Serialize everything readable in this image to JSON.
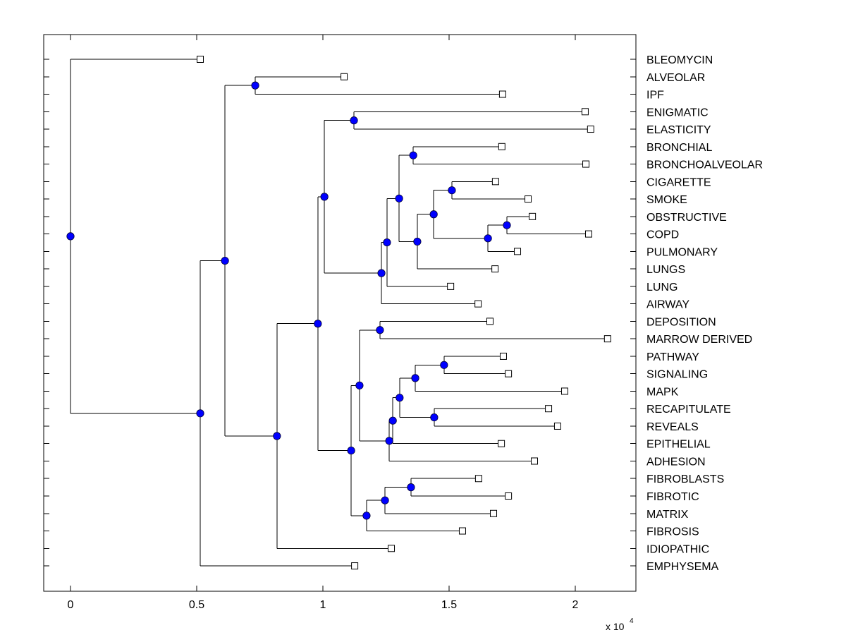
{
  "chart_data": {
    "type": "dendrogram",
    "title": "",
    "xlabel": "",
    "ylabel": "",
    "x_multiplier_label": "x 10",
    "x_multiplier_exponent": "4",
    "xlim": [
      -0.106,
      2.246
    ],
    "x_ticks": [
      0,
      0.5,
      1,
      1.5,
      2
    ],
    "x_tick_labels": [
      "0",
      "0.5",
      "1",
      "1.5",
      "2"
    ],
    "grid": false,
    "colors": {
      "node_fill": "#0000ff",
      "node_edge": "#000033",
      "leaf_fill": "#ffffff",
      "line": "#000000"
    },
    "leaves": [
      {
        "label": "BLEOMYCIN",
        "x": 0.514
      },
      {
        "label": "ALVEOLAR",
        "x": 1.084
      },
      {
        "label": "IPF",
        "x": 1.712
      },
      {
        "label": "ENIGMATIC",
        "x": 2.039
      },
      {
        "label": "ELASTICITY",
        "x": 2.061
      },
      {
        "label": "BRONCHIAL",
        "x": 1.709
      },
      {
        "label": "BRONCHOALVEOLAR",
        "x": 2.042
      },
      {
        "label": "CIGARETTE",
        "x": 1.684
      },
      {
        "label": "SMOKE",
        "x": 1.813
      },
      {
        "label": "OBSTRUCTIVE",
        "x": 1.83
      },
      {
        "label": "COPD",
        "x": 2.053
      },
      {
        "label": "PULMONARY",
        "x": 1.771
      },
      {
        "label": "LUNGS",
        "x": 1.682
      },
      {
        "label": "LUNG",
        "x": 1.506
      },
      {
        "label": "AIRWAY",
        "x": 1.615
      },
      {
        "label": "DEPOSITION",
        "x": 1.662
      },
      {
        "label": "MARROW DERIVED",
        "x": 2.128
      },
      {
        "label": "PATHWAY",
        "x": 1.715
      },
      {
        "label": "SIGNALING",
        "x": 1.735
      },
      {
        "label": "MAPK",
        "x": 1.958
      },
      {
        "label": "RECAPITULATE",
        "x": 1.894
      },
      {
        "label": "REVEALS",
        "x": 1.93
      },
      {
        "label": "EPITHELIAL",
        "x": 1.707
      },
      {
        "label": "ADHESION",
        "x": 1.838
      },
      {
        "label": "FIBROBLASTS",
        "x": 1.617
      },
      {
        "label": "FIBROTIC",
        "x": 1.735
      },
      {
        "label": "MATRIX",
        "x": 1.676
      },
      {
        "label": "FIBROSIS",
        "x": 1.553
      },
      {
        "label": "IDIOPATHIC",
        "x": 1.271
      },
      {
        "label": "EMPHYSEMA",
        "x": 1.126
      }
    ],
    "nodes": [
      {
        "id": "root",
        "x": 0.0,
        "children": [
          "L:BLEOMYCIN",
          "A"
        ]
      },
      {
        "id": "A",
        "x": 0.514,
        "children": [
          "B",
          "L:EMPHYSEMA"
        ]
      },
      {
        "id": "B",
        "x": 0.612,
        "children": [
          "C",
          "D"
        ]
      },
      {
        "id": "C",
        "x": 0.732,
        "children": [
          "L:ALVEOLAR",
          "L:IPF"
        ]
      },
      {
        "id": "D",
        "x": 0.818,
        "children": [
          "E",
          "L:IDIOPATHIC"
        ]
      },
      {
        "id": "E",
        "x": 0.98,
        "children": [
          "F",
          "G"
        ]
      },
      {
        "id": "F",
        "x": 1.006,
        "children": [
          "H",
          "I"
        ]
      },
      {
        "id": "H",
        "x": 1.123,
        "children": [
          "L:ENIGMATIC",
          "L:ELASTICITY"
        ]
      },
      {
        "id": "I",
        "x": 1.232,
        "children": [
          "J",
          "L:AIRWAY"
        ]
      },
      {
        "id": "J",
        "x": 1.254,
        "children": [
          "K",
          "L:LUNG"
        ]
      },
      {
        "id": "K",
        "x": 1.302,
        "children": [
          "Lb",
          "M"
        ]
      },
      {
        "id": "Lb",
        "x": 1.358,
        "children": [
          "L:BRONCHIAL",
          "L:BRONCHOALVEOLAR"
        ]
      },
      {
        "id": "M",
        "x": 1.374,
        "children": [
          "N",
          "L:LUNGS"
        ]
      },
      {
        "id": "N",
        "x": 1.439,
        "children": [
          "O",
          "P"
        ]
      },
      {
        "id": "O",
        "x": 1.511,
        "children": [
          "L:CIGARETTE",
          "L:SMOKE"
        ]
      },
      {
        "id": "P",
        "x": 1.654,
        "children": [
          "Q",
          "L:PULMONARY"
        ]
      },
      {
        "id": "Q",
        "x": 1.729,
        "children": [
          "L:OBSTRUCTIVE",
          "L:COPD"
        ]
      },
      {
        "id": "G",
        "x": 1.112,
        "children": [
          "R",
          "S"
        ]
      },
      {
        "id": "R",
        "x": 1.145,
        "children": [
          "T",
          "U"
        ]
      },
      {
        "id": "T",
        "x": 1.226,
        "children": [
          "L:DEPOSITION",
          "L:MARROW DERIVED"
        ]
      },
      {
        "id": "U",
        "x": 1.263,
        "children": [
          "V",
          "L:ADHESION"
        ]
      },
      {
        "id": "V",
        "x": 1.277,
        "children": [
          "W",
          "L:EPITHELIAL"
        ]
      },
      {
        "id": "W",
        "x": 1.304,
        "children": [
          "X",
          "Y"
        ]
      },
      {
        "id": "X",
        "x": 1.366,
        "children": [
          "Z",
          "L:MAPK"
        ]
      },
      {
        "id": "Z",
        "x": 1.48,
        "children": [
          "L:PATHWAY",
          "L:SIGNALING"
        ]
      },
      {
        "id": "Y",
        "x": 1.441,
        "children": [
          "L:RECAPITULATE",
          "L:REVEALS"
        ]
      },
      {
        "id": "S",
        "x": 1.173,
        "children": [
          "AA",
          "L:FIBROSIS"
        ]
      },
      {
        "id": "AA",
        "x": 1.246,
        "children": [
          "AB",
          "L:MATRIX"
        ]
      },
      {
        "id": "AB",
        "x": 1.349,
        "children": [
          "L:FIBROBLASTS",
          "L:FIBROTIC"
        ]
      }
    ]
  }
}
